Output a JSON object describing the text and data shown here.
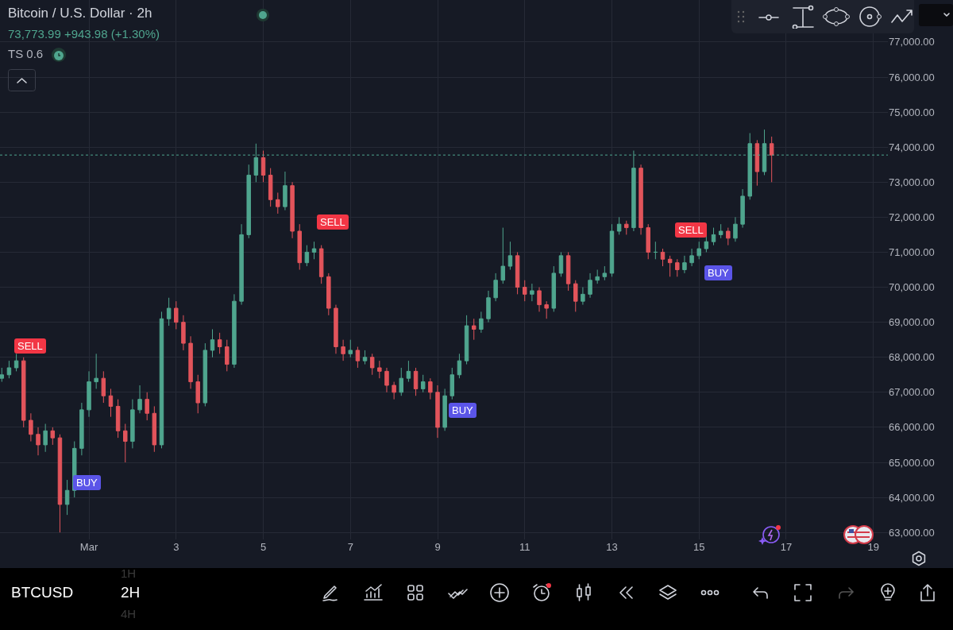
{
  "chart_data": {
    "type": "candlestick",
    "title": "Bitcoin / U.S. Dollar · 2h",
    "subtitle": "73,773.99 +943.98 (+1.30%)",
    "colors": [
      "#4fa58e",
      "#4fa58e",
      "#4fa58e",
      "#e2545b",
      "#e2545b",
      "#e2545b",
      "#4fa58e",
      "#e2545b",
      "#e2545b",
      "#4fa58e",
      "#4fa58e",
      "#4fa58e",
      "#4fa58e",
      "#4fa58e",
      "#e2545b",
      "#e2545b",
      "#e2545b",
      "#e2545b",
      "#4fa58e",
      "#4fa58e",
      "#e2545b",
      "#e2545b",
      "#4fa58e",
      "#4fa58e",
      "#e2545b",
      "#e2545b",
      "#e2545b",
      "#e2545b",
      "#4fa58e",
      "#4fa58e",
      "#e2545b",
      "#e2545b",
      "#4fa58e",
      "#4fa58e",
      "#4fa58e",
      "#4fa58e",
      "#e2545b",
      "#e2545b",
      "#e2545b",
      "#4fa58e",
      "#e2545b",
      "#e2545b",
      "#4fa58e",
      "#4fa58e",
      "#e2545b",
      "#e2545b",
      "#e2545b",
      "#e2545b",
      "#4fa58e",
      "#e2545b",
      "#4fa58e",
      "#e2545b",
      "#e2545b",
      "#e2545b",
      "#e2545b",
      "#4fa58e",
      "#4fa58e",
      "#e2545b",
      "#4fa58e",
      "#e2545b",
      "#e2545b",
      "#4fa58e",
      "#4fa58e",
      "#4fa58e",
      "#4fa58e",
      "#e2545b",
      "#4fa58e",
      "#4fa58e",
      "#4fa58e",
      "#4fa58e",
      "#4fa58e",
      "#e2545b",
      "#e2545b",
      "#4fa58e",
      "#e2545b",
      "#e2545b",
      "#4fa58e",
      "#4fa58e",
      "#e2545b",
      "#e2545b",
      "#4fa58e",
      "#4fa58e",
      "#4fa58e",
      "#4fa58e",
      "#4fa58e",
      "#4fa58e",
      "#e2545b",
      "#4fa58e",
      "#e2545b",
      "#e2545b",
      "#4fa58e",
      "#e2545b",
      "#e2545b",
      "#e2545b",
      "#4fa58e",
      "#4fa58e",
      "#4fa58e",
      "#4fa58e",
      "#4fa58e",
      "#4fa58e",
      "#e2545b",
      "#4fa58e",
      "#4fa58e",
      "#4fa58e",
      "#e2545b",
      "#4fa58e",
      "#e2545b"
    ],
    "x": [
      "--02-27T00:00",
      "--02-27T04:00",
      "--02-27T08:00",
      "--02-27T12:00",
      "--02-27T16:00",
      "--02-27T20:00",
      "--02-28T00:00",
      "--02-28T04:00",
      "--02-28T08:00",
      "--02-28T12:00",
      "--02-28T16:00",
      "--02-28T20:00",
      "--03-01T00:00",
      "--03-01T04:00",
      "--03-01T08:00",
      "--03-01T12:00",
      "--03-01T16:00",
      "--03-01T20:00",
      "--03-02T00:00",
      "--03-02T04:00",
      "--03-02T08:00",
      "--03-02T12:00",
      "--03-02T16:00",
      "--03-02T20:00",
      "--03-03T00:00",
      "--03-03T04:00",
      "--03-03T08:00",
      "--03-03T12:00",
      "--03-03T16:00",
      "--03-03T20:00",
      "--03-04T00:00",
      "--03-04T04:00",
      "--03-04T08:00",
      "--03-04T12:00",
      "--03-04T16:00",
      "--03-04T20:00",
      "--03-05T00:00",
      "--03-05T04:00",
      "--03-05T08:00",
      "--03-05T12:00",
      "--03-05T16:00",
      "--03-05T20:00",
      "--03-06T00:00",
      "--03-06T04:00",
      "--03-06T08:00",
      "--03-06T12:00",
      "--03-06T16:00",
      "--03-06T20:00",
      "--03-07T00:00",
      "--03-07T04:00",
      "--03-07T08:00",
      "--03-07T12:00",
      "--03-07T16:00",
      "--03-07T20:00",
      "--03-08T00:00",
      "--03-08T04:00",
      "--03-08T08:00",
      "--03-08T12:00",
      "--03-08T16:00",
      "--03-08T20:00",
      "--03-09T00:00",
      "--03-09T04:00",
      "--03-09T08:00",
      "--03-09T12:00",
      "--03-09T16:00",
      "--03-09T20:00",
      "--03-10T00:00",
      "--03-10T04:00",
      "--03-10T08:00",
      "--03-10T12:00",
      "--03-10T16:00",
      "--03-10T20:00",
      "--03-11T00:00",
      "--03-11T04:00",
      "--03-11T08:00",
      "--03-11T12:00",
      "--03-11T16:00",
      "--03-11T20:00",
      "--03-12T00:00",
      "--03-12T04:00",
      "--03-12T08:00",
      "--03-12T12:00",
      "--03-12T16:00",
      "--03-12T20:00",
      "--03-13T00:00",
      "--03-13T04:00",
      "--03-13T08:00",
      "--03-13T12:00",
      "--03-13T16:00",
      "--03-13T20:00",
      "--03-14T00:00",
      "--03-14T04:00",
      "--03-14T08:00",
      "--03-14T12:00",
      "--03-14T16:00",
      "--03-14T20:00",
      "--03-15T00:00",
      "--03-15T04:00",
      "--03-15T08:00",
      "--03-15T12:00",
      "--03-15T16:00",
      "--03-15T20:00",
      "--03-16T00:00",
      "--03-16T04:00",
      "--03-16T08:00",
      "--03-16T12:00",
      "--03-16T16:00"
    ],
    "ohlc": [
      [
        67400,
        67700,
        67300,
        67500
      ],
      [
        67500,
        67900,
        67400,
        67700
      ],
      [
        67700,
        68100,
        67600,
        67900
      ],
      [
        67900,
        68000,
        66000,
        66200
      ],
      [
        66200,
        66400,
        65600,
        65800
      ],
      [
        65800,
        66000,
        65200,
        65500
      ],
      [
        65500,
        66100,
        65300,
        65900
      ],
      [
        65900,
        66000,
        65500,
        65700
      ],
      [
        65700,
        65800,
        63000,
        63800
      ],
      [
        63800,
        64500,
        63500,
        64200
      ],
      [
        64200,
        65600,
        64000,
        65400
      ],
      [
        65400,
        66700,
        65200,
        66500
      ],
      [
        66500,
        67600,
        66300,
        67300
      ],
      [
        67300,
        68100,
        67100,
        67400
      ],
      [
        67400,
        67600,
        66700,
        66900
      ],
      [
        66900,
        67100,
        66300,
        66600
      ],
      [
        66600,
        66800,
        65700,
        65900
      ],
      [
        65900,
        66100,
        65000,
        65600
      ],
      [
        65600,
        66800,
        65400,
        66500
      ],
      [
        66500,
        67200,
        66400,
        66800
      ],
      [
        66800,
        67000,
        66200,
        66400
      ],
      [
        66400,
        66600,
        65300,
        65500
      ],
      [
        65500,
        69300,
        65400,
        69100
      ],
      [
        69100,
        69700,
        68900,
        69400
      ],
      [
        69400,
        69600,
        68800,
        69000
      ],
      [
        69000,
        69200,
        68200,
        68400
      ],
      [
        68400,
        68600,
        67100,
        67300
      ],
      [
        67300,
        67500,
        66400,
        66700
      ],
      [
        66700,
        68400,
        66600,
        68200
      ],
      [
        68200,
        68800,
        68000,
        68500
      ],
      [
        68500,
        68700,
        68100,
        68300
      ],
      [
        68300,
        68500,
        67600,
        67800
      ],
      [
        67800,
        69800,
        67700,
        69600
      ],
      [
        69600,
        71800,
        69500,
        71500
      ],
      [
        71500,
        73500,
        71400,
        73200
      ],
      [
        73200,
        74100,
        73000,
        73700
      ],
      [
        73700,
        73900,
        73000,
        73200
      ],
      [
        73200,
        73400,
        72300,
        72500
      ],
      [
        72500,
        72700,
        72100,
        72300
      ],
      [
        72300,
        73300,
        72200,
        72900
      ],
      [
        72900,
        73000,
        71400,
        71600
      ],
      [
        71600,
        71800,
        70500,
        70700
      ],
      [
        70700,
        71200,
        70600,
        71000
      ],
      [
        71000,
        71300,
        70800,
        71100
      ],
      [
        71100,
        71200,
        70100,
        70300
      ],
      [
        70300,
        70400,
        69200,
        69400
      ],
      [
        69400,
        69500,
        68100,
        68300
      ],
      [
        68300,
        68500,
        67900,
        68100
      ],
      [
        68100,
        68500,
        68000,
        68200
      ],
      [
        68200,
        68300,
        67700,
        67900
      ],
      [
        67900,
        68200,
        67800,
        68000
      ],
      [
        68000,
        68100,
        67500,
        67700
      ],
      [
        67700,
        67900,
        67400,
        67600
      ],
      [
        67600,
        67700,
        67000,
        67200
      ],
      [
        67200,
        67300,
        66800,
        67000
      ],
      [
        67000,
        67700,
        66900,
        67400
      ],
      [
        67400,
        67900,
        67300,
        67600
      ],
      [
        67600,
        67700,
        66900,
        67100
      ],
      [
        67100,
        67500,
        67000,
        67300
      ],
      [
        67300,
        67400,
        66800,
        67000
      ],
      [
        67000,
        67200,
        65700,
        66000
      ],
      [
        66000,
        67100,
        65900,
        66900
      ],
      [
        66900,
        67700,
        66800,
        67500
      ],
      [
        67500,
        68100,
        67400,
        67900
      ],
      [
        67900,
        69200,
        67800,
        68900
      ],
      [
        68900,
        69100,
        68500,
        68800
      ],
      [
        68800,
        69300,
        68700,
        69100
      ],
      [
        69100,
        69900,
        69000,
        69700
      ],
      [
        69700,
        70400,
        69600,
        70200
      ],
      [
        70200,
        71700,
        70100,
        70600
      ],
      [
        70600,
        71300,
        70500,
        70900
      ],
      [
        70900,
        71000,
        69800,
        70000
      ],
      [
        70000,
        70200,
        69600,
        69800
      ],
      [
        69800,
        70100,
        69600,
        69900
      ],
      [
        69900,
        70000,
        69300,
        69500
      ],
      [
        69500,
        69600,
        69100,
        69400
      ],
      [
        69400,
        70600,
        69300,
        70400
      ],
      [
        70400,
        71000,
        70300,
        70900
      ],
      [
        70900,
        71000,
        69900,
        70100
      ],
      [
        70100,
        70200,
        69300,
        69600
      ],
      [
        69600,
        70000,
        69500,
        69800
      ],
      [
        69800,
        70400,
        69700,
        70200
      ],
      [
        70200,
        70500,
        70100,
        70300
      ],
      [
        70300,
        70600,
        70200,
        70400
      ],
      [
        70400,
        71800,
        70300,
        71600
      ],
      [
        71600,
        72000,
        71500,
        71800
      ],
      [
        71800,
        71900,
        71500,
        71700
      ],
      [
        71700,
        73900,
        71600,
        73400
      ],
      [
        73400,
        73500,
        71500,
        71700
      ],
      [
        71700,
        71800,
        70800,
        71000
      ],
      [
        71000,
        71300,
        70800,
        71000
      ],
      [
        71000,
        71100,
        70600,
        70800
      ],
      [
        70800,
        70900,
        70300,
        70700
      ],
      [
        70700,
        70800,
        70300,
        70500
      ],
      [
        70500,
        70900,
        70400,
        70700
      ],
      [
        70700,
        71100,
        70600,
        70900
      ],
      [
        70900,
        71300,
        70800,
        71100
      ],
      [
        71100,
        71500,
        71000,
        71300
      ],
      [
        71300,
        71700,
        71200,
        71500
      ],
      [
        71500,
        71800,
        71400,
        71600
      ],
      [
        71600,
        71700,
        71200,
        71400
      ],
      [
        71400,
        72000,
        71300,
        71800
      ],
      [
        71800,
        72800,
        71700,
        72600
      ],
      [
        72600,
        74400,
        72500,
        74100
      ],
      [
        74100,
        74200,
        72900,
        73300
      ],
      [
        73300,
        74500,
        73200,
        74100
      ],
      [
        74100,
        74300,
        73000,
        73773.99
      ]
    ],
    "xlim": [
      "--02-26T23:00",
      "--03-19T08:00"
    ],
    "xticks": [
      {
        "value": "--03-01",
        "label": "Mar"
      },
      {
        "value": "--03-03",
        "label": "3"
      },
      {
        "value": "--03-05",
        "label": "5"
      },
      {
        "value": "--03-07",
        "label": "7"
      },
      {
        "value": "--03-09",
        "label": "9"
      },
      {
        "value": "--03-11",
        "label": "11"
      },
      {
        "value": "--03-13",
        "label": "13"
      },
      {
        "value": "--03-15",
        "label": "15"
      },
      {
        "value": "--03-17",
        "label": "17"
      },
      {
        "value": "--03-19",
        "label": "19"
      }
    ],
    "ylim": [
      62800,
      78200
    ],
    "yticks": [
      {
        "value": 63000,
        "label": "63,000.00"
      },
      {
        "value": 64000,
        "label": "64,000.00"
      },
      {
        "value": 65000,
        "label": "65,000.00"
      },
      {
        "value": 66000,
        "label": "66,000.00"
      },
      {
        "value": 67000,
        "label": "67,000.00"
      },
      {
        "value": 68000,
        "label": "68,000.00"
      },
      {
        "value": 69000,
        "label": "69,000.00"
      },
      {
        "value": 70000,
        "label": "70,000.00"
      },
      {
        "value": 71000,
        "label": "71,000.00"
      },
      {
        "value": 72000,
        "label": "72,000.00"
      },
      {
        "value": 73000,
        "label": "73,000.00"
      },
      {
        "value": 74000,
        "label": "74,000.00"
      },
      {
        "value": 75000,
        "label": "75,000.00"
      },
      {
        "value": 76000,
        "label": "76,000.00"
      },
      {
        "value": 77000,
        "label": "77,000.00"
      }
    ],
    "grid": true,
    "ref_lines": [
      {
        "axis": "y",
        "value": 73773.99,
        "color": "#4fa58e",
        "line_style": "dotted"
      }
    ],
    "annotations": [
      "SELL",
      "BUY",
      "SELL",
      "BUY",
      "SELL",
      "BUY",
      "TS 0.6",
      "BTCUSD",
      "2H",
      "1H",
      "4H"
    ]
  }
}
